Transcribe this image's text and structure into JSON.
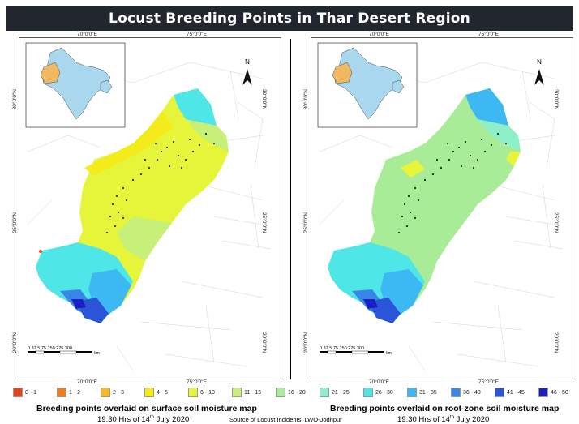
{
  "title": "Locust Breeding Points in Thar Desert Region",
  "ticks": {
    "lon_left": "70°0'0\"E",
    "lon_right": "75°0'0\"E",
    "lat_top": "30°0'0\"N",
    "lat_mid": "25°0'0\"N",
    "lat_bottom": "20°0'0\"N"
  },
  "north_arrow": "N",
  "scale_bar": {
    "labels": "0  37.5 75    150    225    300",
    "unit": "km"
  },
  "maps": [
    {
      "caption": "Breeding points overlaid on surface soil moisture map",
      "time": "19:30 Hrs of 14",
      "time_sup": "th",
      "time_tail": " July 2020"
    },
    {
      "caption": "Breeding points overlaid on root-zone  soil moisture map",
      "time": "19:30 Hrs of 14",
      "time_sup": "th",
      "time_tail": " July 2020"
    }
  ],
  "legend": [
    {
      "label": "0 - 1",
      "color": "#e8421b"
    },
    {
      "label": "1 - 2",
      "color": "#f47a1f"
    },
    {
      "label": "2 - 3",
      "color": "#f8b81e"
    },
    {
      "label": "4 - 5",
      "color": "#f3ec1a"
    },
    {
      "label": "6 - 10",
      "color": "#e6f53a"
    },
    {
      "label": "11 - 15",
      "color": "#c6f07a"
    },
    {
      "label": "16 - 20",
      "color": "#a8ec98"
    },
    {
      "label": "21 - 25",
      "color": "#8ef0c8"
    },
    {
      "label": "26 - 30",
      "color": "#4ee6e6"
    },
    {
      "label": "31 - 35",
      "color": "#3cb9f3"
    },
    {
      "label": "36 - 40",
      "color": "#3a86e8"
    },
    {
      "label": "41 - 45",
      "color": "#2b55d8"
    },
    {
      "label": "46 - 50",
      "color": "#1a1fc2"
    }
  ],
  "source": "Source of Locust Incidents: LWO-Jodhpur"
}
